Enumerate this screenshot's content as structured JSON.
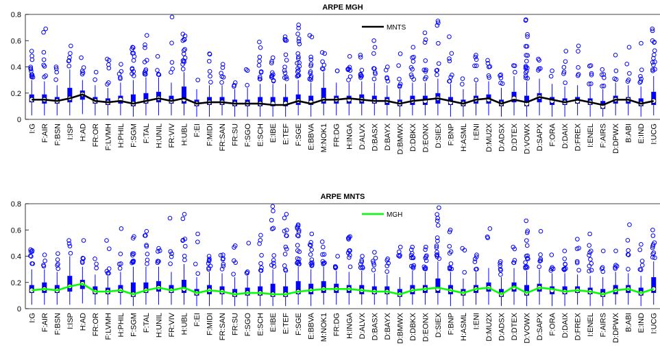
{
  "chart_data": [
    {
      "type": "box",
      "title": "ARPE MGH",
      "ylim": [
        0,
        0.8
      ],
      "yticks": [
        "0",
        "0.2",
        "0.4",
        "0.6",
        "0.8"
      ],
      "box_color": "#0000ff",
      "line_color": "#000000",
      "legend": {
        "label": "MNTS",
        "placement": "top-center"
      },
      "categories": [
        "I:G",
        "F:AIR",
        "F:BSN",
        "I:ISP",
        "H:AD",
        "FR:OR",
        "F:LVMH",
        "H:PHIL",
        "F:SGM",
        "F:TAL",
        "H:UNIL",
        "FR:VIV",
        "H:UBL",
        "F:EI",
        "F:MIDI",
        "FR:SAN",
        "FR:SU",
        "F:SGO",
        "E:SCH",
        "E:IBE",
        "E:TEF",
        "F:SGE",
        "E:BBVA",
        "M:NOK1",
        "FR:DG",
        "H:INGA",
        "D:ALVX",
        "D:BASX",
        "D:BAYX",
        "D:BMWX",
        "D:DBKX",
        "D:EONX",
        "D:SIEX",
        "F:BNP",
        "H:ASML",
        "I:ENI",
        "D:MU2X",
        "D:ADSX",
        "D:DTEX",
        "D:VOWX",
        "D:SAPX",
        "F:ORA",
        "D:DAIX",
        "D:FREX",
        "I:ENEL",
        "F:AIRS",
        "D:DPWX",
        "B:ABI",
        "E:IND",
        "I:UCG"
      ],
      "medians": [
        0.15,
        0.15,
        0.14,
        0.16,
        0.19,
        0.14,
        0.13,
        0.15,
        0.12,
        0.14,
        0.16,
        0.14,
        0.15,
        0.12,
        0.13,
        0.13,
        0.12,
        0.12,
        0.12,
        0.12,
        0.12,
        0.14,
        0.13,
        0.15,
        0.15,
        0.15,
        0.15,
        0.14,
        0.14,
        0.12,
        0.14,
        0.14,
        0.16,
        0.13,
        0.12,
        0.15,
        0.15,
        0.12,
        0.16,
        0.12,
        0.17,
        0.14,
        0.13,
        0.14,
        0.13,
        0.1,
        0.15,
        0.15,
        0.12,
        0.14
      ],
      "q1": [
        0.13,
        0.12,
        0.12,
        0.13,
        0.15,
        0.12,
        0.11,
        0.12,
        0.1,
        0.12,
        0.13,
        0.12,
        0.12,
        0.1,
        0.11,
        0.11,
        0.1,
        0.1,
        0.1,
        0.1,
        0.1,
        0.11,
        0.11,
        0.12,
        0.12,
        0.12,
        0.12,
        0.12,
        0.11,
        0.1,
        0.11,
        0.11,
        0.12,
        0.11,
        0.1,
        0.12,
        0.12,
        0.1,
        0.13,
        0.1,
        0.13,
        0.11,
        0.11,
        0.12,
        0.11,
        0.08,
        0.12,
        0.12,
        0.1,
        0.11
      ],
      "q3": [
        0.19,
        0.19,
        0.17,
        0.24,
        0.22,
        0.17,
        0.16,
        0.18,
        0.19,
        0.2,
        0.21,
        0.18,
        0.25,
        0.15,
        0.17,
        0.17,
        0.15,
        0.15,
        0.17,
        0.17,
        0.17,
        0.19,
        0.18,
        0.24,
        0.18,
        0.18,
        0.19,
        0.18,
        0.17,
        0.15,
        0.18,
        0.18,
        0.2,
        0.17,
        0.15,
        0.18,
        0.19,
        0.15,
        0.21,
        0.18,
        0.2,
        0.17,
        0.16,
        0.17,
        0.16,
        0.14,
        0.18,
        0.17,
        0.16,
        0.21
      ],
      "whisker_low": [
        0.03,
        0.03,
        0.03,
        0.03,
        0.04,
        0.03,
        0.03,
        0.03,
        0.02,
        0.03,
        0.03,
        0.03,
        0.03,
        0.02,
        0.02,
        0.03,
        0.02,
        0.02,
        0.02,
        0.02,
        0.02,
        0.03,
        0.02,
        0.03,
        0.03,
        0.03,
        0.03,
        0.03,
        0.03,
        0.02,
        0.03,
        0.03,
        0.03,
        0.02,
        0.02,
        0.03,
        0.03,
        0.02,
        0.03,
        0.02,
        0.03,
        0.02,
        0.02,
        0.03,
        0.02,
        0.02,
        0.03,
        0.03,
        0.02,
        0.03
      ],
      "whisker_high": [
        0.3,
        0.29,
        0.26,
        0.38,
        0.3,
        0.26,
        0.24,
        0.28,
        0.3,
        0.32,
        0.32,
        0.28,
        0.36,
        0.23,
        0.26,
        0.26,
        0.23,
        0.24,
        0.27,
        0.27,
        0.27,
        0.3,
        0.28,
        0.36,
        0.28,
        0.28,
        0.29,
        0.28,
        0.26,
        0.23,
        0.28,
        0.28,
        0.31,
        0.27,
        0.23,
        0.28,
        0.29,
        0.24,
        0.33,
        0.29,
        0.31,
        0.27,
        0.25,
        0.26,
        0.25,
        0.23,
        0.28,
        0.26,
        0.25,
        0.33
      ],
      "outlier_max": [
        0.52,
        0.69,
        0.4,
        0.56,
        0.47,
        0.36,
        0.46,
        0.42,
        0.55,
        0.64,
        0.48,
        0.78,
        0.65,
        0.3,
        0.5,
        0.42,
        0.28,
        0.38,
        0.59,
        0.47,
        0.63,
        0.72,
        0.64,
        0.51,
        0.37,
        0.48,
        0.49,
        0.6,
        0.4,
        0.5,
        0.55,
        0.66,
        0.75,
        0.63,
        0.31,
        0.49,
        0.45,
        0.34,
        0.41,
        0.76,
        0.46,
        0.37,
        0.52,
        0.56,
        0.41,
        0.38,
        0.49,
        0.55,
        0.58,
        0.69
      ],
      "outlier_count": [
        12,
        8,
        4,
        6,
        5,
        2,
        6,
        5,
        12,
        10,
        5,
        5,
        14,
        1,
        6,
        6,
        3,
        3,
        10,
        10,
        12,
        18,
        12,
        6,
        2,
        8,
        9,
        8,
        5,
        6,
        9,
        9,
        8,
        8,
        2,
        6,
        6,
        5,
        3,
        18,
        5,
        2,
        6,
        5,
        6,
        6,
        4,
        5,
        6,
        14
      ],
      "mean_line": [
        0.15,
        0.15,
        0.14,
        0.16,
        0.19,
        0.14,
        0.13,
        0.14,
        0.12,
        0.14,
        0.16,
        0.14,
        0.16,
        0.12,
        0.13,
        0.13,
        0.12,
        0.12,
        0.12,
        0.11,
        0.11,
        0.14,
        0.12,
        0.15,
        0.15,
        0.16,
        0.15,
        0.14,
        0.14,
        0.12,
        0.14,
        0.15,
        0.16,
        0.14,
        0.12,
        0.15,
        0.16,
        0.12,
        0.15,
        0.13,
        0.17,
        0.15,
        0.13,
        0.15,
        0.13,
        0.11,
        0.15,
        0.15,
        0.12,
        0.14
      ]
    },
    {
      "type": "box",
      "title": "ARPE MNTS",
      "ylim": [
        0,
        0.8
      ],
      "yticks": [
        "0",
        "0.2",
        "0.4",
        "0.6",
        "0.8"
      ],
      "box_color": "#0000ff",
      "line_color": "#00ff00",
      "legend": {
        "label": "MGH",
        "placement": "top-center"
      },
      "categories": [
        "I:G",
        "F:AIR",
        "F:BSN",
        "I:ISP",
        "H:AD",
        "FR:OR",
        "F:LVMH",
        "H:PHIL",
        "F:SGM",
        "F:TAL",
        "H:UNIL",
        "FR:VIV",
        "H:UBL",
        "F:EI",
        "F:MIDI",
        "FR:SAN",
        "FR:SU",
        "F:SGO",
        "E:SCH",
        "E:IBE",
        "E:TEF",
        "F:SGE",
        "E:BBVA",
        "M:NOK1",
        "FR:DG",
        "H:INGA",
        "D:ALVX",
        "D:BASX",
        "D:BAYX",
        "D:BMWX",
        "D:DBKX",
        "D:EONX",
        "D:SIEX",
        "F:BNP",
        "H:ASML",
        "I:ENI",
        "D:MU2X",
        "D:ADSX",
        "D:DTEX",
        "D:VOWX",
        "D:SAPX",
        "F:ORA",
        "D:DAIX",
        "D:FREX",
        "I:ENEL",
        "F:AIRS",
        "D:DPWX",
        "B:ABI",
        "E:IND",
        "I:UCG"
      ],
      "medians": [
        0.14,
        0.15,
        0.14,
        0.17,
        0.19,
        0.13,
        0.13,
        0.14,
        0.11,
        0.14,
        0.16,
        0.14,
        0.15,
        0.12,
        0.14,
        0.13,
        0.11,
        0.12,
        0.12,
        0.11,
        0.11,
        0.13,
        0.14,
        0.15,
        0.15,
        0.15,
        0.14,
        0.13,
        0.13,
        0.11,
        0.14,
        0.15,
        0.15,
        0.14,
        0.12,
        0.15,
        0.16,
        0.11,
        0.16,
        0.12,
        0.16,
        0.14,
        0.13,
        0.14,
        0.13,
        0.11,
        0.14,
        0.15,
        0.12,
        0.15
      ],
      "q1": [
        0.12,
        0.12,
        0.12,
        0.13,
        0.15,
        0.11,
        0.11,
        0.12,
        0.09,
        0.12,
        0.13,
        0.12,
        0.12,
        0.1,
        0.11,
        0.11,
        0.09,
        0.1,
        0.1,
        0.09,
        0.09,
        0.11,
        0.11,
        0.12,
        0.12,
        0.12,
        0.11,
        0.11,
        0.11,
        0.09,
        0.11,
        0.12,
        0.12,
        0.11,
        0.1,
        0.12,
        0.13,
        0.09,
        0.13,
        0.1,
        0.13,
        0.11,
        0.11,
        0.12,
        0.11,
        0.09,
        0.11,
        0.12,
        0.1,
        0.12
      ],
      "q3": [
        0.18,
        0.2,
        0.18,
        0.25,
        0.22,
        0.17,
        0.16,
        0.18,
        0.2,
        0.2,
        0.21,
        0.18,
        0.22,
        0.15,
        0.18,
        0.17,
        0.15,
        0.16,
        0.17,
        0.19,
        0.17,
        0.21,
        0.19,
        0.21,
        0.19,
        0.18,
        0.18,
        0.17,
        0.17,
        0.15,
        0.18,
        0.18,
        0.23,
        0.18,
        0.15,
        0.18,
        0.2,
        0.15,
        0.2,
        0.18,
        0.19,
        0.17,
        0.17,
        0.17,
        0.16,
        0.15,
        0.18,
        0.18,
        0.16,
        0.24
      ],
      "whisker_low": [
        0.03,
        0.03,
        0.03,
        0.03,
        0.04,
        0.03,
        0.03,
        0.03,
        0.02,
        0.03,
        0.03,
        0.03,
        0.03,
        0.02,
        0.02,
        0.03,
        0.02,
        0.02,
        0.02,
        0.02,
        0.02,
        0.03,
        0.02,
        0.03,
        0.03,
        0.03,
        0.03,
        0.03,
        0.03,
        0.02,
        0.03,
        0.03,
        0.03,
        0.02,
        0.02,
        0.03,
        0.03,
        0.02,
        0.03,
        0.02,
        0.03,
        0.02,
        0.02,
        0.03,
        0.02,
        0.02,
        0.03,
        0.03,
        0.02,
        0.03
      ],
      "whisker_high": [
        0.3,
        0.3,
        0.28,
        0.4,
        0.32,
        0.26,
        0.25,
        0.28,
        0.32,
        0.32,
        0.32,
        0.28,
        0.34,
        0.24,
        0.28,
        0.27,
        0.24,
        0.25,
        0.27,
        0.3,
        0.27,
        0.32,
        0.3,
        0.32,
        0.29,
        0.28,
        0.29,
        0.27,
        0.26,
        0.24,
        0.29,
        0.28,
        0.36,
        0.28,
        0.23,
        0.28,
        0.31,
        0.24,
        0.31,
        0.29,
        0.3,
        0.27,
        0.27,
        0.26,
        0.25,
        0.24,
        0.28,
        0.27,
        0.25,
        0.36
      ],
      "outlier_max": [
        0.45,
        0.41,
        0.42,
        0.52,
        0.52,
        0.38,
        0.52,
        0.61,
        0.55,
        0.59,
        0.46,
        0.69,
        0.72,
        0.57,
        0.4,
        0.41,
        0.48,
        0.5,
        0.56,
        0.78,
        0.72,
        0.64,
        0.57,
        0.51,
        0.4,
        0.55,
        0.4,
        0.43,
        0.38,
        0.47,
        0.47,
        0.47,
        0.77,
        0.6,
        0.46,
        0.41,
        0.61,
        0.36,
        0.47,
        0.67,
        0.59,
        0.41,
        0.44,
        0.53,
        0.57,
        0.44,
        0.44,
        0.64,
        0.49,
        0.6
      ],
      "outlier_count": [
        8,
        4,
        5,
        4,
        5,
        3,
        6,
        5,
        10,
        8,
        6,
        5,
        8,
        4,
        8,
        7,
        5,
        4,
        8,
        10,
        12,
        18,
        12,
        8,
        5,
        10,
        8,
        6,
        5,
        5,
        12,
        10,
        14,
        10,
        3,
        6,
        3,
        6,
        5,
        14,
        6,
        5,
        8,
        6,
        10,
        4,
        5,
        6,
        6,
        10
      ],
      "mean_line": [
        0.14,
        0.15,
        0.14,
        0.17,
        0.19,
        0.13,
        0.13,
        0.14,
        0.11,
        0.14,
        0.16,
        0.14,
        0.16,
        0.12,
        0.14,
        0.13,
        0.11,
        0.12,
        0.12,
        0.11,
        0.11,
        0.13,
        0.14,
        0.15,
        0.15,
        0.15,
        0.14,
        0.13,
        0.13,
        0.11,
        0.14,
        0.15,
        0.16,
        0.14,
        0.12,
        0.15,
        0.16,
        0.11,
        0.17,
        0.12,
        0.16,
        0.15,
        0.13,
        0.14,
        0.13,
        0.11,
        0.14,
        0.15,
        0.12,
        0.15
      ]
    }
  ]
}
